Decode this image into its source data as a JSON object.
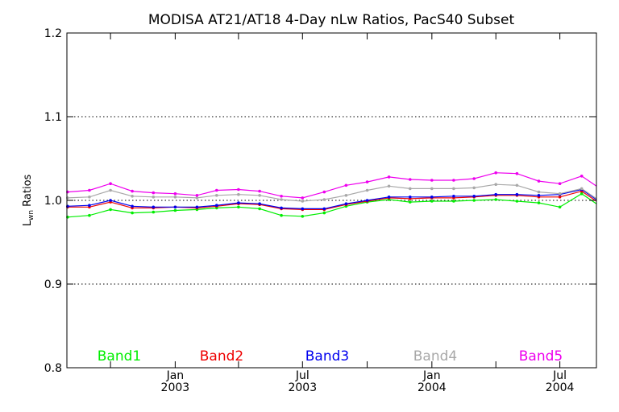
{
  "chart_data": {
    "type": "line",
    "title": "MODISA AT21/AT18 4-Day nLw Ratios, PacS40 Subset",
    "ylabel": "L",
    "ylabel_sub": "wn",
    "ylabel_suffix": " Ratios",
    "xlabel": "",
    "ylim": [
      0.8,
      1.2
    ],
    "yticks": [
      "0.8",
      "0.9",
      "1.0",
      "1.1",
      "1.2"
    ],
    "xlim": [
      "2002-07-31",
      "2004-08-22"
    ],
    "xticks": [
      {
        "date": "2003-01-01",
        "month": "Jan",
        "year": "2003"
      },
      {
        "date": "2003-07-01",
        "month": "Jul",
        "year": "2003"
      },
      {
        "date": "2004-01-01",
        "month": "Jan",
        "year": "2004"
      },
      {
        "date": "2004-07-01",
        "month": "Jul",
        "year": "2004"
      }
    ],
    "minor_ticks": [
      "2002-10-01",
      "2003-04-01",
      "2003-10-01",
      "2004-04-01"
    ],
    "reference_line": 1.0,
    "gridlines": [
      0.9,
      1.1
    ],
    "legend_position": "bottom",
    "x": [
      "2002-08-01",
      "2002-09-01",
      "2002-10-01",
      "2002-11-01",
      "2002-12-01",
      "2003-01-01",
      "2003-02-01",
      "2003-03-01",
      "2003-04-01",
      "2003-05-01",
      "2003-06-01",
      "2003-07-01",
      "2003-08-01",
      "2003-09-01",
      "2003-10-01",
      "2003-11-01",
      "2003-12-01",
      "2004-01-01",
      "2004-02-01",
      "2004-03-01",
      "2004-04-01",
      "2004-05-01",
      "2004-06-01",
      "2004-07-01",
      "2004-08-01"
    ],
    "series": [
      {
        "name": "Band1",
        "color": "#00ee00",
        "values": [
          0.98,
          0.982,
          0.989,
          0.985,
          0.986,
          0.988,
          0.989,
          0.991,
          0.992,
          0.99,
          0.982,
          0.981,
          0.985,
          0.993,
          0.998,
          1.001,
          0.998,
          0.999,
          0.999,
          1.0,
          1.001,
          0.999,
          0.997,
          0.992,
          1.008
        ]
      },
      {
        "name": "Band2",
        "color": "#ee0000",
        "values": [
          0.992,
          0.992,
          0.998,
          0.991,
          0.991,
          0.992,
          0.991,
          0.993,
          0.996,
          0.995,
          0.99,
          0.989,
          0.989,
          0.995,
          0.999,
          1.003,
          1.002,
          1.003,
          1.003,
          1.004,
          1.006,
          1.006,
          1.004,
          1.004,
          1.011
        ]
      },
      {
        "name": "Band3",
        "color": "#0000ee",
        "values": [
          0.993,
          0.994,
          1.0,
          0.993,
          0.992,
          0.992,
          0.992,
          0.994,
          0.997,
          0.996,
          0.991,
          0.99,
          0.99,
          0.996,
          1.0,
          1.004,
          1.004,
          1.004,
          1.005,
          1.005,
          1.007,
          1.007,
          1.006,
          1.007,
          1.013
        ]
      },
      {
        "name": "Band4",
        "color": "#a8a8a8",
        "values": [
          1.003,
          1.004,
          1.012,
          1.005,
          1.004,
          1.004,
          1.003,
          1.006,
          1.007,
          1.006,
          1.001,
          0.999,
          1.001,
          1.006,
          1.012,
          1.017,
          1.014,
          1.014,
          1.014,
          1.015,
          1.019,
          1.018,
          1.01,
          1.008,
          1.014
        ]
      },
      {
        "name": "Band5",
        "color": "#ee00ee",
        "values": [
          1.01,
          1.012,
          1.02,
          1.011,
          1.009,
          1.008,
          1.006,
          1.012,
          1.013,
          1.011,
          1.005,
          1.003,
          1.01,
          1.018,
          1.022,
          1.028,
          1.025,
          1.024,
          1.024,
          1.026,
          1.033,
          1.032,
          1.023,
          1.02,
          1.029
        ]
      }
    ]
  }
}
